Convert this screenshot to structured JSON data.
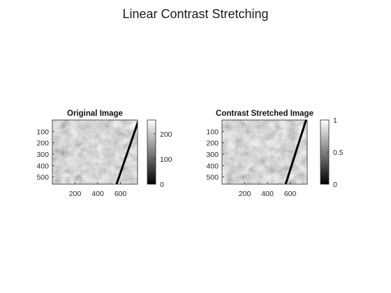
{
  "figure": {
    "title": "Linear Contrast Stretching",
    "background": "#ffffff"
  },
  "chart_data": [
    {
      "type": "heatmap",
      "title": "Original Image",
      "colormap": "gray",
      "image_size": {
        "width": 750,
        "height": 563
      },
      "xticks": [
        200,
        400,
        600
      ],
      "yticks": [
        100,
        200,
        300,
        400,
        500
      ],
      "colorbar": {
        "range": [
          0,
          255
        ],
        "ticks": [
          0,
          100,
          200
        ]
      },
      "line_feature": {
        "from": [
          760,
          0
        ],
        "to": [
          565,
          563
        ]
      }
    },
    {
      "type": "heatmap",
      "title": "Contrast Stretched Image",
      "colormap": "gray",
      "image_size": {
        "width": 750,
        "height": 563
      },
      "xticks": [
        200,
        400,
        600
      ],
      "yticks": [
        100,
        200,
        300,
        400,
        500
      ],
      "colorbar": {
        "range": [
          0,
          1
        ],
        "ticks": [
          0,
          0.5,
          1
        ]
      },
      "line_feature": {
        "from": [
          740,
          0
        ],
        "to": [
          560,
          563
        ]
      }
    }
  ]
}
